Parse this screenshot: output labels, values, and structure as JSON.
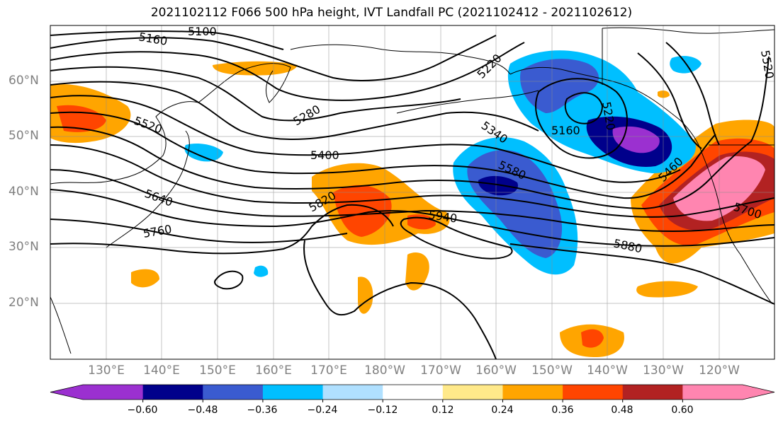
{
  "title": "2021102112 F066 500 hPa height, IVT Landfall PC (2021102412 - 2021102612)",
  "lat_labels": [
    "60°N",
    "50°N",
    "40°N",
    "30°N",
    "20°N"
  ],
  "lon_labels": [
    "130°E",
    "140°E",
    "150°E",
    "160°E",
    "170°E",
    "180°W",
    "170°W",
    "160°W",
    "150°W",
    "140°W",
    "130°W",
    "120°W"
  ],
  "contour_labels": [
    "5100",
    "5160",
    "5220",
    "5280",
    "5520",
    "5340",
    "5400",
    "5580",
    "5640",
    "5820",
    "5940",
    "5760",
    "5880",
    "5160",
    "5220",
    "5460",
    "5700",
    "5520"
  ],
  "colorbar": {
    "colors": [
      "#9b30d0",
      "#00008b",
      "#3a5bd0",
      "#00bfff",
      "#b0e0ff",
      "#ffffff",
      "#ffe98a",
      "#ffa500",
      "#ff4500",
      "#b22222",
      "#ff85b0"
    ],
    "tick_labels": [
      "−0.60",
      "−0.48",
      "−0.36",
      "−0.24",
      "−0.12",
      "0.12",
      "0.24",
      "0.36",
      "0.48",
      "0.60"
    ]
  }
}
